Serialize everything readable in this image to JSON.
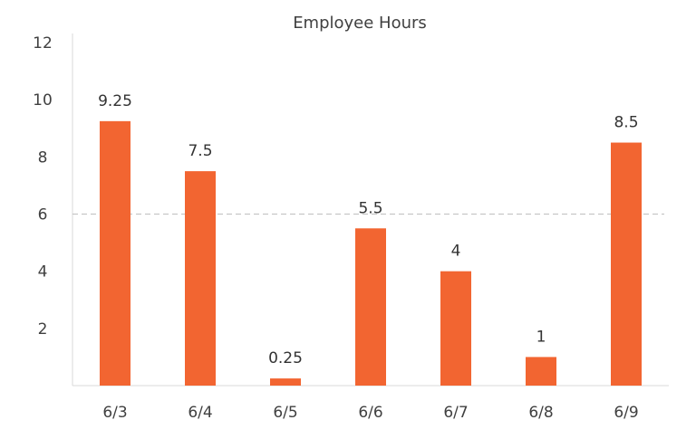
{
  "chart_data": {
    "type": "bar",
    "title": "Employee Hours",
    "xlabel": "",
    "ylabel": "",
    "categories": [
      "6/3",
      "6/4",
      "6/5",
      "6/6",
      "6/7",
      "6/8",
      "6/9"
    ],
    "series": [
      {
        "values": [
          9.25,
          7.5,
          0.25,
          5.5,
          4,
          1,
          8.5
        ],
        "data_labels": [
          "9.25",
          "7.5",
          "0.25",
          "5.5",
          "4",
          "1",
          "8.5"
        ],
        "color": "#F26531"
      }
    ],
    "ylim": [
      0,
      12
    ],
    "y_ticks": [
      2,
      4,
      6,
      8,
      10,
      12
    ],
    "y_tick_labels": [
      "2",
      "4",
      "6",
      "8",
      "10",
      "12"
    ],
    "reference_line": {
      "value": 6,
      "style": "dashed",
      "color": "#bfbfbf"
    },
    "grid": false,
    "legend": "none"
  }
}
